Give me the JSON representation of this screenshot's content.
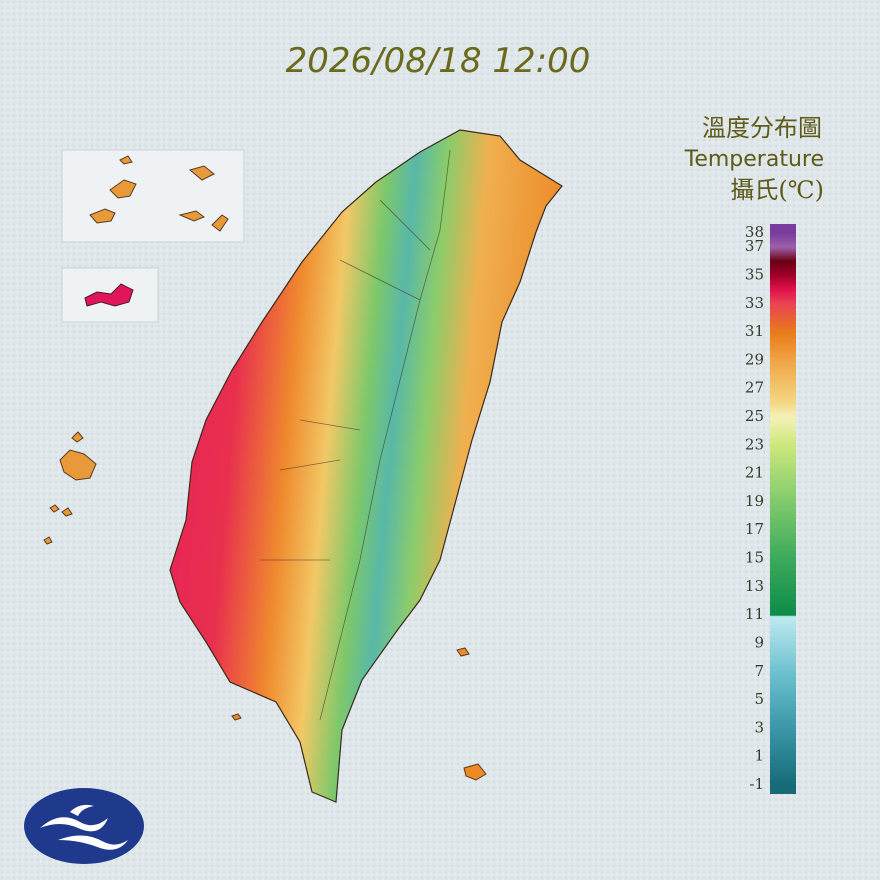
{
  "title": "2026/08/18 12:00",
  "legend": {
    "title": "溫度分布圖",
    "subtitle": "Temperature",
    "unit": "攝氏(℃)",
    "range": [
      -1,
      38
    ],
    "ticks": [
      38,
      37,
      35,
      33,
      31,
      29,
      27,
      25,
      23,
      21,
      19,
      17,
      15,
      13,
      11,
      9,
      7,
      5,
      3,
      1,
      -1
    ],
    "color_stops": [
      {
        "value": -1,
        "color": "#176b78"
      },
      {
        "value": 3,
        "color": "#3a97a8"
      },
      {
        "value": 7,
        "color": "#6ec2cf"
      },
      {
        "value": 10.9,
        "color": "#bfeaf0"
      },
      {
        "value": 11,
        "color": "#0d8c48"
      },
      {
        "value": 15,
        "color": "#3caa5c"
      },
      {
        "value": 19,
        "color": "#80ca6c"
      },
      {
        "value": 23,
        "color": "#cce87c"
      },
      {
        "value": 25,
        "color": "#f5f1b8"
      },
      {
        "value": 26,
        "color": "#f4d884"
      },
      {
        "value": 29,
        "color": "#f0a444"
      },
      {
        "value": 31,
        "color": "#e87a1a"
      },
      {
        "value": 33,
        "color": "#ea4452"
      },
      {
        "value": 34,
        "color": "#e0124c"
      },
      {
        "value": 35,
        "color": "#a0002a"
      },
      {
        "value": 36,
        "color": "#6a0012"
      },
      {
        "value": 37,
        "color": "#9c60aa"
      },
      {
        "value": 38,
        "color": "#7a3c9c"
      }
    ]
  }
}
